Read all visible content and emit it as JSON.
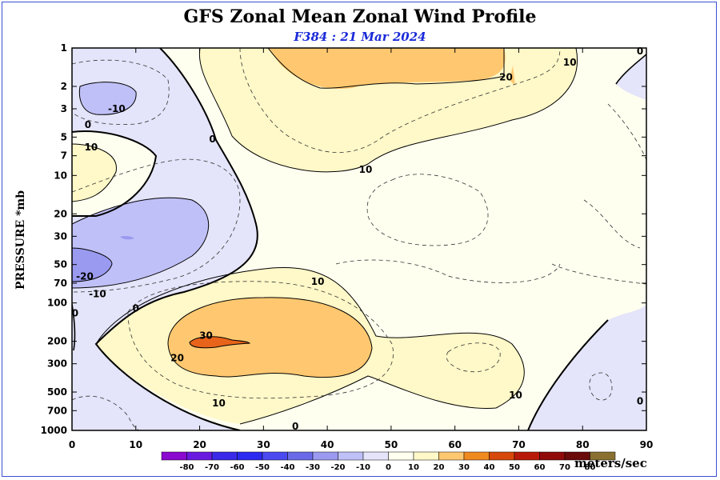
{
  "title": "GFS Zonal Mean Zonal Wind Profile",
  "subtitle": "F384 : 21 Mar 2024",
  "chart_data": {
    "type": "contour",
    "title": "GFS Zonal Mean Zonal Wind Profile",
    "subtitle": "F384 : 21 Mar 2024",
    "xlabel": "",
    "ylabel": "PRESSURE *mb",
    "x_ticks": [
      0,
      10,
      20,
      30,
      40,
      50,
      60,
      70,
      80,
      90
    ],
    "xlim": [
      0,
      90
    ],
    "y_ticks": [
      1,
      2,
      3,
      5,
      7,
      10,
      20,
      30,
      50,
      70,
      100,
      200,
      300,
      500,
      700,
      1000
    ],
    "ylim": [
      1000,
      1
    ],
    "y_scale": "log",
    "y_inverted": true,
    "contour_labels": [
      {
        "x": 7,
        "y": 3,
        "text": "-10"
      },
      {
        "x": 2.5,
        "y": 4,
        "text": "0"
      },
      {
        "x": 3,
        "y": 6,
        "text": "10"
      },
      {
        "x": 22,
        "y": 5.2,
        "text": "0"
      },
      {
        "x": 2,
        "y": 62,
        "text": "-20"
      },
      {
        "x": 4,
        "y": 85,
        "text": "-10"
      },
      {
        "x": 10,
        "y": 110,
        "text": "0"
      },
      {
        "x": 0.5,
        "y": 120,
        "text": "0"
      },
      {
        "x": 38.5,
        "y": 68,
        "text": "10"
      },
      {
        "x": 46,
        "y": 9,
        "text": "10"
      },
      {
        "x": 68,
        "y": 1.7,
        "text": "20"
      },
      {
        "x": 78,
        "y": 1.3,
        "text": "10"
      },
      {
        "x": 89,
        "y": 1.06,
        "text": "0"
      },
      {
        "x": 21,
        "y": 180,
        "text": "30"
      },
      {
        "x": 16.5,
        "y": 270,
        "text": "20"
      },
      {
        "x": 23,
        "y": 610,
        "text": "10"
      },
      {
        "x": 69.5,
        "y": 530,
        "text": "10"
      },
      {
        "x": 89,
        "y": 590,
        "text": "0"
      },
      {
        "x": 35,
        "y": 930,
        "text": "0"
      }
    ],
    "colorbar": {
      "levels": [
        -80,
        -70,
        -60,
        -50,
        -40,
        -30,
        -20,
        -10,
        0,
        10,
        20,
        30,
        40,
        50,
        60,
        70,
        80
      ],
      "colors": [
        "#8a0ad0",
        "#6a1ae0",
        "#3a2ae8",
        "#2a2af0",
        "#4a4af0",
        "#6a6ae8",
        "#9a9af0",
        "#c0c0f8",
        "#e4e4fa",
        "#fffff0",
        "#fff8c8",
        "#ffc870",
        "#f08a20",
        "#d8480a",
        "#b81a0a",
        "#900a0a",
        "#6a0a0a",
        "#8a7030"
      ],
      "units": "meters/sec"
    }
  }
}
